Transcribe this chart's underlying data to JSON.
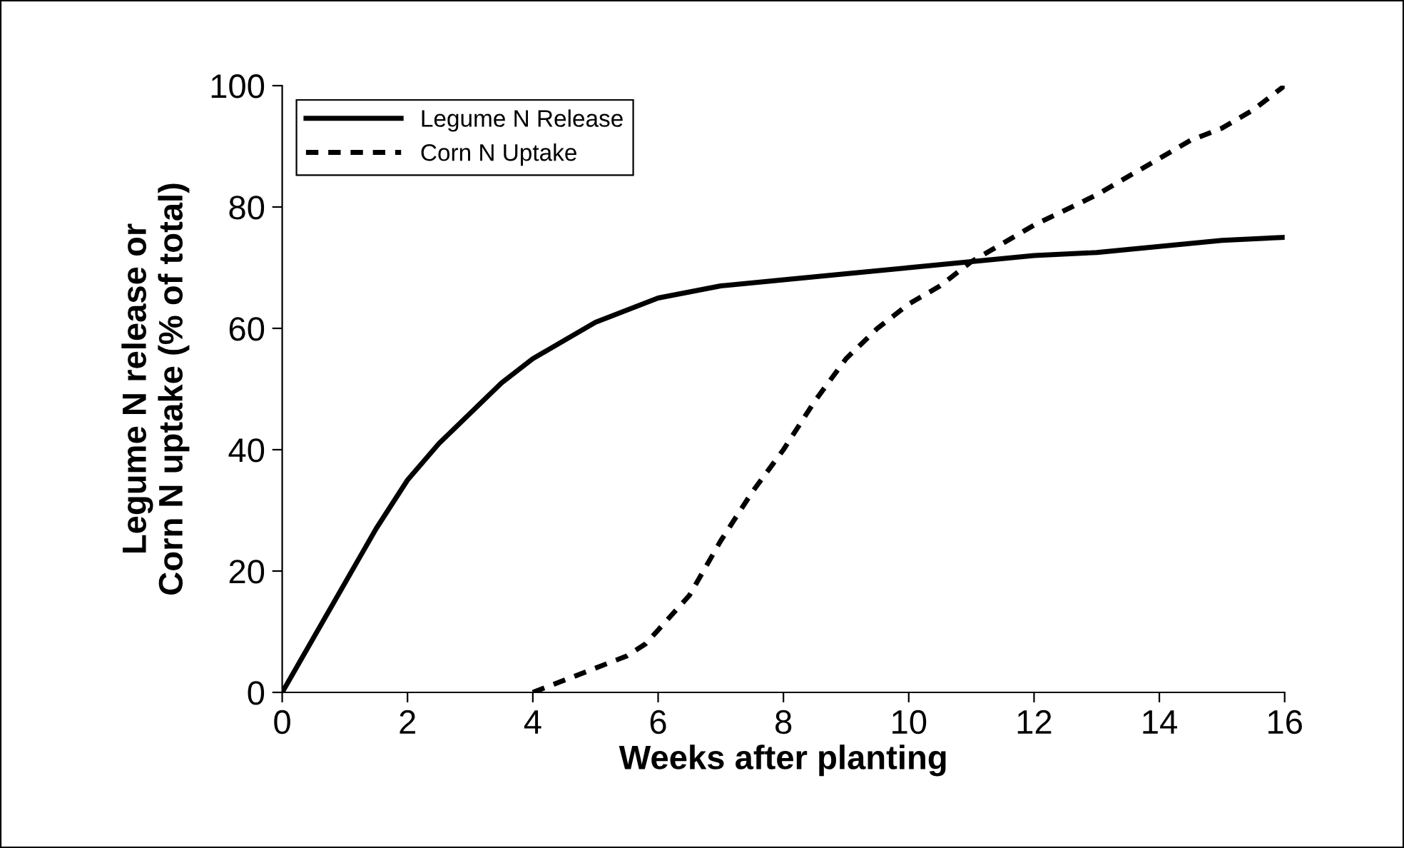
{
  "chart_data": {
    "type": "line",
    "xlabel": "Weeks after planting",
    "ylabel": "Legume N release or\nCorn N uptake (% of total)",
    "xlim": [
      0,
      16
    ],
    "ylim": [
      0,
      100
    ],
    "xticks": [
      0,
      2,
      4,
      6,
      8,
      10,
      12,
      14,
      16
    ],
    "yticks": [
      0,
      20,
      40,
      60,
      80,
      100
    ],
    "grid": false,
    "legend": "top left",
    "marker": "none",
    "series": [
      {
        "name": "Legume N Release",
        "color": "#000000",
        "line_style": "solid",
        "x": [
          0,
          0.5,
          1,
          1.5,
          2,
          2.5,
          3,
          3.5,
          4,
          4.5,
          5,
          5.5,
          6,
          6.5,
          7,
          8,
          9,
          10,
          11,
          12,
          13,
          14,
          15,
          16
        ],
        "values": [
          0,
          9,
          18,
          27,
          35,
          41,
          46,
          51,
          55,
          58,
          61,
          63,
          65,
          66,
          67,
          68,
          69,
          70,
          71,
          72,
          72.5,
          73.5,
          74.5,
          75
        ]
      },
      {
        "name": "Corn N Uptake",
        "color": "#000000",
        "line_style": "dashed",
        "x": [
          4,
          4.5,
          5,
          5.5,
          5.8,
          6.5,
          7,
          7.5,
          8,
          8.5,
          9,
          9.5,
          10,
          10.5,
          11,
          11.5,
          12,
          13,
          14,
          14.5,
          15,
          15.5,
          16
        ],
        "values": [
          0,
          2,
          4,
          6,
          8,
          16,
          25,
          33,
          40,
          48,
          55,
          60,
          64,
          67,
          71,
          74,
          77,
          82,
          88,
          91,
          93,
          96,
          100
        ]
      }
    ]
  }
}
